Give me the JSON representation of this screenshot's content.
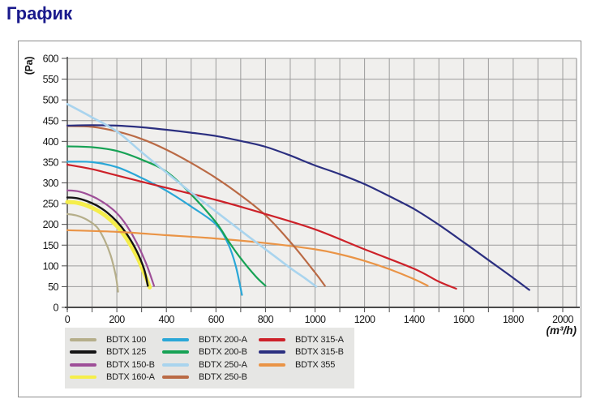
{
  "page": {
    "title": "График"
  },
  "chart_data": {
    "type": "line",
    "title": "",
    "xlabel": "(m³/h)",
    "ylabel": "(Pa)",
    "xlim": [
      0,
      2000
    ],
    "ylim": [
      0,
      600
    ],
    "x_tick_labels": [
      0,
      200,
      400,
      600,
      800,
      1000,
      1200,
      1400,
      1600,
      1800,
      2000
    ],
    "y_tick_labels": [
      0,
      50,
      100,
      150,
      200,
      250,
      300,
      350,
      400,
      450,
      500,
      550,
      600
    ],
    "x_grid_step": 100,
    "y_grid_step": 50,
    "grid": true,
    "legend_position": "bottom-left",
    "legend_columns": [
      4,
      4,
      3
    ],
    "colors": {
      "plot_background": "#f0efed",
      "gridline": "#9c9c9c",
      "axis": "#4a4a4a",
      "legend_background": "#e6e6e4",
      "frame_border": "#8c8c8c",
      "title": "#19198c"
    },
    "series": [
      {
        "name": "BDTX 100",
        "color": "#b5ae8a",
        "line_width": 2.2,
        "points": [
          [
            0,
            225
          ],
          [
            40,
            221
          ],
          [
            80,
            211
          ],
          [
            120,
            193
          ],
          [
            150,
            163
          ],
          [
            175,
            125
          ],
          [
            195,
            78
          ],
          [
            205,
            38
          ]
        ]
      },
      {
        "name": "BDTX 125",
        "color": "#141414",
        "line_width": 2.4,
        "points": [
          [
            0,
            265
          ],
          [
            40,
            263
          ],
          [
            80,
            256
          ],
          [
            120,
            245
          ],
          [
            160,
            229
          ],
          [
            200,
            207
          ],
          [
            240,
            177
          ],
          [
            280,
            136
          ],
          [
            310,
            92
          ],
          [
            325,
            52
          ]
        ]
      },
      {
        "name": "BDTX 150-B",
        "color": "#9e4f98",
        "line_width": 2.2,
        "points": [
          [
            0,
            282
          ],
          [
            40,
            280
          ],
          [
            80,
            273
          ],
          [
            120,
            262
          ],
          [
            160,
            247
          ],
          [
            200,
            227
          ],
          [
            240,
            197
          ],
          [
            280,
            156
          ],
          [
            320,
            103
          ],
          [
            350,
            52
          ]
        ]
      },
      {
        "name": "BDTX 160-A",
        "color": "#f5ee4a",
        "line_width": 5,
        "points": [
          [
            0,
            254
          ],
          [
            40,
            252
          ],
          [
            80,
            245
          ],
          [
            120,
            234
          ],
          [
            160,
            218
          ],
          [
            200,
            196
          ],
          [
            240,
            165
          ],
          [
            280,
            124
          ],
          [
            315,
            76
          ],
          [
            333,
            48
          ]
        ]
      },
      {
        "name": "BDTX 200-A",
        "color": "#2aa7d7",
        "line_width": 2.2,
        "points": [
          [
            0,
            351
          ],
          [
            100,
            350
          ],
          [
            200,
            338
          ],
          [
            300,
            312
          ],
          [
            400,
            281
          ],
          [
            500,
            243
          ],
          [
            600,
            200
          ],
          [
            650,
            152
          ],
          [
            680,
            100
          ],
          [
            705,
            30
          ]
        ]
      },
      {
        "name": "BDTX 200-B",
        "color": "#17a255",
        "line_width": 2.2,
        "points": [
          [
            0,
            388
          ],
          [
            100,
            386
          ],
          [
            200,
            377
          ],
          [
            300,
            356
          ],
          [
            400,
            327
          ],
          [
            500,
            272
          ],
          [
            600,
            205
          ],
          [
            650,
            160
          ],
          [
            700,
            118
          ],
          [
            760,
            75
          ],
          [
            800,
            52
          ]
        ]
      },
      {
        "name": "BDTX 250-A",
        "color": "#a9d4ee",
        "line_width": 2.6,
        "points": [
          [
            0,
            490
          ],
          [
            100,
            458
          ],
          [
            200,
            424
          ],
          [
            300,
            374
          ],
          [
            400,
            325
          ],
          [
            500,
            277
          ],
          [
            600,
            231
          ],
          [
            700,
            185
          ],
          [
            800,
            140
          ],
          [
            900,
            95
          ],
          [
            960,
            70
          ],
          [
            1005,
            50
          ]
        ]
      },
      {
        "name": "BDTX 250-B",
        "color": "#ba6a45",
        "line_width": 2.2,
        "points": [
          [
            0,
            437
          ],
          [
            100,
            435
          ],
          [
            200,
            424
          ],
          [
            300,
            406
          ],
          [
            400,
            380
          ],
          [
            500,
            348
          ],
          [
            600,
            312
          ],
          [
            700,
            270
          ],
          [
            800,
            222
          ],
          [
            900,
            158
          ],
          [
            1000,
            84
          ],
          [
            1040,
            52
          ]
        ]
      },
      {
        "name": "BDTX 315-A",
        "color": "#cd2129",
        "line_width": 2.2,
        "points": [
          [
            0,
            344
          ],
          [
            100,
            333
          ],
          [
            200,
            318
          ],
          [
            400,
            288
          ],
          [
            600,
            259
          ],
          [
            800,
            225
          ],
          [
            1000,
            188
          ],
          [
            1200,
            140
          ],
          [
            1400,
            93
          ],
          [
            1500,
            62
          ],
          [
            1570,
            45
          ]
        ]
      },
      {
        "name": "BDTX 315-B",
        "color": "#2b2f80",
        "line_width": 2.2,
        "points": [
          [
            0,
            438
          ],
          [
            100,
            439
          ],
          [
            200,
            438
          ],
          [
            300,
            434
          ],
          [
            400,
            428
          ],
          [
            500,
            421
          ],
          [
            600,
            413
          ],
          [
            700,
            401
          ],
          [
            800,
            387
          ],
          [
            900,
            366
          ],
          [
            1000,
            342
          ],
          [
            1100,
            321
          ],
          [
            1200,
            297
          ],
          [
            1300,
            268
          ],
          [
            1400,
            237
          ],
          [
            1500,
            199
          ],
          [
            1600,
            157
          ],
          [
            1700,
            114
          ],
          [
            1800,
            71
          ],
          [
            1865,
            42
          ]
        ]
      },
      {
        "name": "BDTX 355",
        "color": "#ea9446",
        "line_width": 2.2,
        "points": [
          [
            0,
            186
          ],
          [
            200,
            182
          ],
          [
            400,
            174
          ],
          [
            600,
            166
          ],
          [
            800,
            155
          ],
          [
            1000,
            140
          ],
          [
            1100,
            128
          ],
          [
            1200,
            112
          ],
          [
            1300,
            92
          ],
          [
            1400,
            68
          ],
          [
            1455,
            52
          ]
        ]
      }
    ],
    "draw_order": [
      "BDTX 100",
      "BDTX 160-A",
      "BDTX 125",
      "BDTX 150-B",
      "BDTX 355",
      "BDTX 200-A",
      "BDTX 200-B",
      "BDTX 250-B",
      "BDTX 315-A",
      "BDTX 315-B",
      "BDTX 250-A"
    ]
  }
}
